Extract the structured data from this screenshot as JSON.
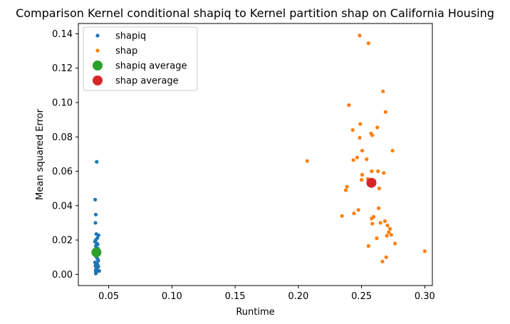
{
  "chart_data": {
    "type": "scatter",
    "title": "Comparison Kernel conditional shapiq to Kernel partition shap on California Housing",
    "xlabel": "Runtime",
    "ylabel": "Mean squared Error",
    "xlim": [
      0.026,
      0.306
    ],
    "ylim": [
      -0.0065,
      0.146
    ],
    "xticks": [
      0.05,
      0.1,
      0.15,
      0.2,
      0.25,
      0.3
    ],
    "xtick_labels": [
      "0.05",
      "0.10",
      "0.15",
      "0.20",
      "0.25",
      "0.30"
    ],
    "yticks": [
      0.0,
      0.02,
      0.04,
      0.06,
      0.08,
      0.1,
      0.12,
      0.14
    ],
    "ytick_labels": [
      "0.00",
      "0.02",
      "0.04",
      "0.06",
      "0.08",
      "0.10",
      "0.12",
      "0.14"
    ],
    "grid": false,
    "legend_position": "top-left",
    "legend": [
      "shapiq",
      "shap",
      "shapiq average",
      "shap average"
    ],
    "series": [
      {
        "name": "shapiq",
        "color": "#1f77b4",
        "marker": "small",
        "points": [
          [
            0.0405,
            0.0655
          ],
          [
            0.0393,
            0.0435
          ],
          [
            0.0398,
            0.0348
          ],
          [
            0.0395,
            0.03
          ],
          [
            0.0402,
            0.0235
          ],
          [
            0.042,
            0.0228
          ],
          [
            0.0411,
            0.0212
          ],
          [
            0.0397,
            0.02
          ],
          [
            0.0392,
            0.019
          ],
          [
            0.0406,
            0.018
          ],
          [
            0.0413,
            0.0175
          ],
          [
            0.0398,
            0.0165
          ],
          [
            0.0415,
            0.015
          ],
          [
            0.0402,
            0.014
          ],
          [
            0.041,
            0.013
          ],
          [
            0.042,
            0.012
          ],
          [
            0.0395,
            0.011
          ],
          [
            0.0404,
            0.01
          ],
          [
            0.0412,
            0.009
          ],
          [
            0.0418,
            0.008
          ],
          [
            0.0392,
            0.007
          ],
          [
            0.0407,
            0.0065
          ],
          [
            0.04,
            0.006
          ],
          [
            0.0412,
            0.0055
          ],
          [
            0.0395,
            0.005
          ],
          [
            0.0418,
            0.0045
          ],
          [
            0.0408,
            0.004
          ],
          [
            0.04,
            0.003
          ],
          [
            0.041,
            0.0025
          ],
          [
            0.0397,
            0.002
          ],
          [
            0.0425,
            0.002
          ],
          [
            0.0404,
            0.0015
          ],
          [
            0.0398,
            0.0005
          ]
        ]
      },
      {
        "name": "shap",
        "color": "#ff7f0e",
        "marker": "small",
        "points": [
          [
            0.2485,
            0.139
          ],
          [
            0.2555,
            0.1345
          ],
          [
            0.267,
            0.1065
          ],
          [
            0.24,
            0.0985
          ],
          [
            0.269,
            0.0945
          ],
          [
            0.249,
            0.0875
          ],
          [
            0.243,
            0.084
          ],
          [
            0.2625,
            0.0855
          ],
          [
            0.2575,
            0.082
          ],
          [
            0.2585,
            0.081
          ],
          [
            0.2485,
            0.0795
          ],
          [
            0.2745,
            0.072
          ],
          [
            0.2505,
            0.072
          ],
          [
            0.2465,
            0.068
          ],
          [
            0.254,
            0.067
          ],
          [
            0.2435,
            0.0665
          ],
          [
            0.207,
            0.066
          ],
          [
            0.258,
            0.06
          ],
          [
            0.263,
            0.06
          ],
          [
            0.2675,
            0.059
          ],
          [
            0.2505,
            0.058
          ],
          [
            0.25,
            0.055
          ],
          [
            0.255,
            0.0555
          ],
          [
            0.26,
            0.0545
          ],
          [
            0.264,
            0.05
          ],
          [
            0.2385,
            0.051
          ],
          [
            0.2375,
            0.049
          ],
          [
            0.2635,
            0.0385
          ],
          [
            0.2475,
            0.0375
          ],
          [
            0.244,
            0.0355
          ],
          [
            0.2345,
            0.034
          ],
          [
            0.2595,
            0.0335
          ],
          [
            0.258,
            0.0325
          ],
          [
            0.2685,
            0.031
          ],
          [
            0.265,
            0.03
          ],
          [
            0.2585,
            0.0295
          ],
          [
            0.2705,
            0.0285
          ],
          [
            0.2725,
            0.0265
          ],
          [
            0.2715,
            0.0245
          ],
          [
            0.2735,
            0.023
          ],
          [
            0.27,
            0.0225
          ],
          [
            0.262,
            0.021
          ],
          [
            0.2765,
            0.018
          ],
          [
            0.2555,
            0.0165
          ],
          [
            0.3,
            0.0135
          ],
          [
            0.2695,
            0.01
          ],
          [
            0.2665,
            0.0075
          ]
        ]
      },
      {
        "name": "shapiq average",
        "color": "#2ca02c",
        "marker": "large",
        "points": [
          [
            0.0403,
            0.0128
          ]
        ]
      },
      {
        "name": "shap average",
        "color": "#d62728",
        "marker": "large",
        "points": [
          [
            0.2578,
            0.0533
          ]
        ]
      }
    ]
  }
}
